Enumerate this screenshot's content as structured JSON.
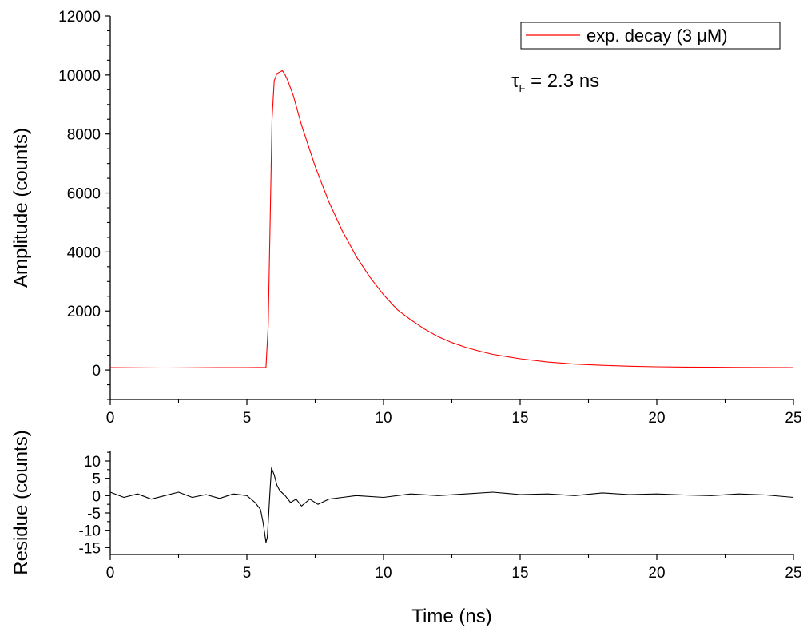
{
  "chart_data": [
    {
      "type": "line",
      "panel": "top",
      "xlabel": "",
      "ylabel": "Amplitude (counts)",
      "xlim": [
        0,
        25
      ],
      "ylim": [
        -1000,
        12000
      ],
      "x_ticks": [
        0,
        5,
        10,
        15,
        20,
        25
      ],
      "y_ticks": [
        0,
        2000,
        4000,
        6000,
        8000,
        10000,
        12000
      ],
      "legend": {
        "label": "exp. decay (3 μM)",
        "position": "top-right"
      },
      "annotation": {
        "symbol": "τ",
        "subscript": "F",
        "text": " = 2.3 ns"
      },
      "grid": false,
      "series": [
        {
          "name": "exp. decay (3 μM)",
          "color": "#ff0000",
          "x": [
            0,
            1,
            2,
            3,
            4,
            5,
            5.7,
            5.78,
            5.85,
            5.92,
            6.0,
            6.1,
            6.2,
            6.3,
            6.4,
            6.5,
            6.7,
            7.0,
            7.5,
            8.0,
            8.5,
            9.0,
            9.5,
            10.0,
            10.5,
            11.0,
            11.5,
            12.0,
            12.5,
            13.0,
            13.5,
            14.0,
            15.0,
            16.0,
            17.0,
            18.0,
            19.0,
            20.0,
            21.0,
            22.0,
            23.0,
            24.0,
            25.0
          ],
          "y": [
            80,
            75,
            70,
            75,
            80,
            80,
            90,
            1500,
            5000,
            8500,
            9800,
            10050,
            10100,
            10150,
            10000,
            9800,
            9300,
            8300,
            6900,
            5700,
            4700,
            3850,
            3150,
            2550,
            2050,
            1700,
            1390,
            1130,
            930,
            770,
            640,
            530,
            380,
            270,
            200,
            160,
            130,
            110,
            100,
            95,
            90,
            85,
            80
          ]
        }
      ]
    },
    {
      "type": "line",
      "panel": "bottom",
      "xlabel": "Time (ns)",
      "ylabel": "Residue (counts)",
      "xlim": [
        0,
        25
      ],
      "ylim": [
        -17,
        13
      ],
      "x_ticks": [
        0,
        5,
        10,
        15,
        20,
        25
      ],
      "y_ticks": [
        -15,
        -10,
        -5,
        0,
        5,
        10
      ],
      "grid": false,
      "series": [
        {
          "color": "#000000",
          "x": [
            0,
            0.5,
            1,
            1.5,
            2,
            2.5,
            3,
            3.5,
            4,
            4.5,
            5,
            5.3,
            5.5,
            5.6,
            5.7,
            5.75,
            5.8,
            5.85,
            5.9,
            6.0,
            6.1,
            6.2,
            6.4,
            6.6,
            6.8,
            7.0,
            7.3,
            7.6,
            8.0,
            8.5,
            9,
            10,
            11,
            12,
            13,
            14,
            15,
            16,
            17,
            18,
            19,
            20,
            21,
            22,
            23,
            24,
            25
          ],
          "y": [
            1,
            -0.5,
            0.5,
            -1,
            0,
            1,
            -0.5,
            0.3,
            -0.8,
            0.5,
            0,
            -2,
            -4,
            -8,
            -13.5,
            -12,
            -5,
            2,
            8,
            6,
            3,
            1.5,
            0,
            -2,
            -1,
            -3,
            -1,
            -2.5,
            -1,
            -0.5,
            0,
            -0.5,
            0.5,
            0,
            0.5,
            1,
            0.3,
            0.5,
            0,
            0.8,
            0.3,
            0.5,
            0.2,
            0,
            0.5,
            0.2,
            -0.5
          ]
        }
      ]
    }
  ]
}
